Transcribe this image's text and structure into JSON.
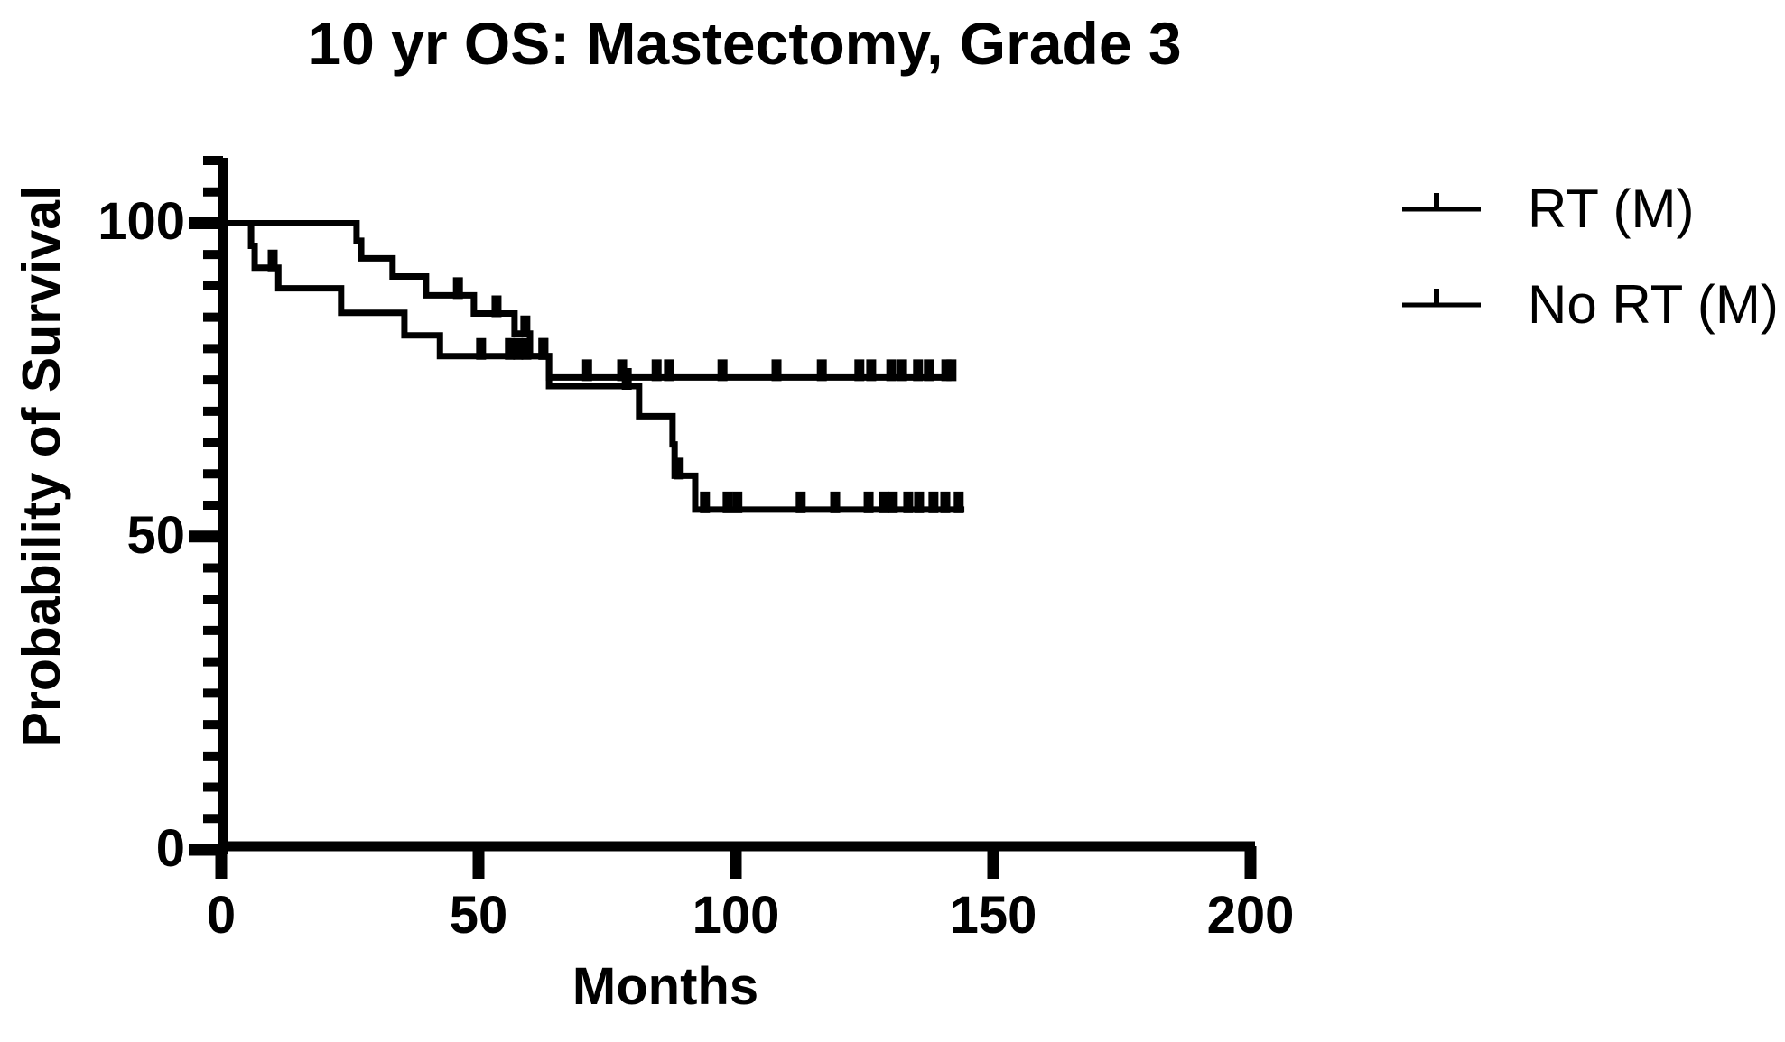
{
  "title": "10 yr OS: Mastectomy, Grade 3",
  "x_axis": {
    "label": "Months",
    "ticks": [
      0,
      50,
      100,
      150,
      200
    ],
    "range": [
      0,
      200
    ]
  },
  "y_axis": {
    "label": "Probability of Survival",
    "ticks": [
      0,
      50,
      100
    ],
    "range": [
      0,
      110
    ],
    "minor_step": 5
  },
  "legend": {
    "entries": [
      {
        "label": "RT (M)"
      },
      {
        "label": "No RT (M)"
      }
    ],
    "position": "right"
  },
  "colors": {
    "line": "#000000",
    "text": "#000000",
    "background": "#ffffff"
  },
  "chart_data": {
    "type": "line",
    "subtype": "kaplan-meier-step",
    "title": "10 yr OS: Mastectomy, Grade 3",
    "xlabel": "Months",
    "ylabel": "Probability of Survival",
    "xlim": [
      0,
      200
    ],
    "ylim": [
      0,
      110
    ],
    "grid": false,
    "legend_position": "right",
    "series": [
      {
        "name": "RT (M)",
        "color": "#000000",
        "start": {
          "x": 0,
          "y": 100
        },
        "end_x": 142.1,
        "steps": [
          [
            26.3,
            97.2
          ],
          [
            27.2,
            94.4
          ],
          [
            33.3,
            91.5
          ],
          [
            39.8,
            88.5
          ],
          [
            49.1,
            85.6
          ],
          [
            57.0,
            82.4
          ],
          [
            60.0,
            78.8
          ],
          [
            63.7,
            75.4
          ]
        ],
        "censor_marks_x": [
          46.0,
          53.5,
          59.1,
          62.6,
          71.1,
          77.9,
          84.6,
          87.0,
          97.4,
          107.9,
          116.7,
          124.0,
          126.3,
          130.2,
          132.3,
          135.4,
          137.5,
          140.9,
          141.9
        ]
      },
      {
        "name": "No RT (M)",
        "color": "#000000",
        "start": {
          "x": 0,
          "y": 100
        },
        "end_x": 144.4,
        "steps": [
          [
            5.8,
            96.4
          ],
          [
            6.5,
            92.9
          ],
          [
            11.1,
            89.6
          ],
          [
            23.3,
            85.7
          ],
          [
            35.6,
            82.1
          ],
          [
            42.5,
            78.8
          ],
          [
            63.7,
            74.0
          ],
          [
            81.2,
            69.2
          ],
          [
            87.7,
            64.7
          ],
          [
            88.1,
            59.7
          ],
          [
            92.1,
            54.3
          ]
        ],
        "censor_marks_x": [
          10.0,
          50.5,
          56.1,
          57.7,
          59.3,
          62.6,
          78.8,
          88.9,
          94.0,
          98.4,
          100.3,
          112.6,
          119.3,
          125.8,
          128.8,
          130.5,
          133.5,
          135.6,
          138.4,
          140.7,
          143.3
        ]
      }
    ]
  }
}
